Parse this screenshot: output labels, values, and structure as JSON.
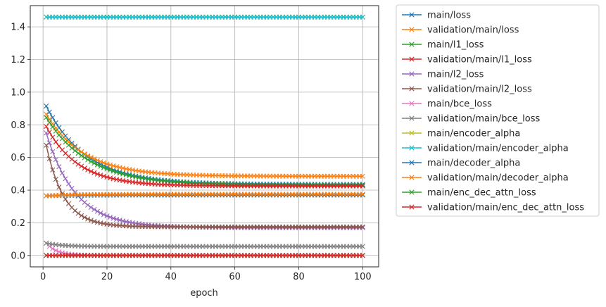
{
  "chart_data": {
    "type": "line",
    "xlabel": "epoch",
    "ylabel": "",
    "xlim": [
      -4,
      105
    ],
    "ylim": [
      -0.07,
      1.53
    ],
    "xticks": [
      0,
      20,
      40,
      60,
      80,
      100
    ],
    "yticks": [
      0.0,
      0.2,
      0.4,
      0.6,
      0.8,
      1.0,
      1.2,
      1.4
    ],
    "xtick_labels": [
      "0",
      "20",
      "40",
      "60",
      "80",
      "100"
    ],
    "ytick_labels": [
      "0.0",
      "0.2",
      "0.4",
      "0.6",
      "0.8",
      "1.0",
      "1.2",
      "1.4"
    ],
    "grid": true,
    "legend_position": "outside-right",
    "marker": "x",
    "series": [
      {
        "name": "main/loss",
        "color": "#1f77b4",
        "start": 0.915,
        "end": 0.435,
        "k": 0.08
      },
      {
        "name": "validation/main/loss",
        "color": "#ff7f0e",
        "start": 0.865,
        "end": 0.485,
        "k": 0.085
      },
      {
        "name": "main/l1_loss",
        "color": "#2ca02c",
        "start": 0.845,
        "end": 0.43,
        "k": 0.075
      },
      {
        "name": "validation/main/l1_loss",
        "color": "#d62728",
        "start": 0.79,
        "end": 0.425,
        "k": 0.1
      },
      {
        "name": "main/l2_loss",
        "color": "#9467bd",
        "start": 0.75,
        "end": 0.17,
        "k": 0.11
      },
      {
        "name": "validation/main/l2_loss",
        "color": "#8c564b",
        "start": 0.675,
        "end": 0.175,
        "k": 0.18
      },
      {
        "name": "main/bce_loss",
        "color": "#e377c2",
        "start": 0.075,
        "end": 0.0,
        "k": 0.3
      },
      {
        "name": "validation/main/bce_loss",
        "color": "#7f7f7f",
        "start": 0.075,
        "end": 0.055,
        "k": 0.2
      },
      {
        "name": "main/encoder_alpha",
        "color": "#bcbd22",
        "start": 1.46,
        "end": 1.46,
        "k": 0.1
      },
      {
        "name": "validation/main/encoder_alpha",
        "color": "#17becf",
        "start": 1.46,
        "end": 1.46,
        "k": 0.1
      },
      {
        "name": "main/decoder_alpha",
        "color": "#1f77b4",
        "start": 0.365,
        "end": 0.37,
        "k": 0.1
      },
      {
        "name": "validation/main/decoder_alpha",
        "color": "#ff7f0e",
        "start": 0.365,
        "end": 0.375,
        "k": 0.1
      },
      {
        "name": "main/enc_dec_attn_loss",
        "color": "#2ca02c",
        "start": 0.0,
        "end": 0.0,
        "k": 0.1
      },
      {
        "name": "validation/main/enc_dec_attn_loss",
        "color": "#d62728",
        "start": 0.0,
        "end": 0.0,
        "k": 0.1
      }
    ]
  }
}
